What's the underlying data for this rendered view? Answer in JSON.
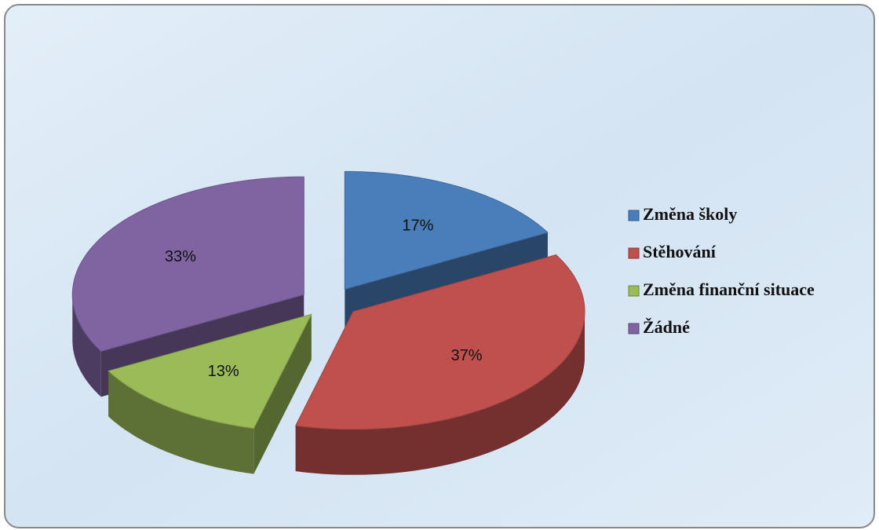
{
  "chart_data": {
    "type": "pie",
    "categories": [
      "Změna školy",
      "Stěhování",
      "Změna finanční situace",
      "Žádné"
    ],
    "values": [
      17,
      37,
      13,
      33
    ],
    "value_labels": [
      "17%",
      "37%",
      "13%",
      "33%"
    ],
    "colors": [
      "#4a7ebb",
      "#c0504d",
      "#9bbb59",
      "#8064a2"
    ],
    "legend": "right"
  }
}
